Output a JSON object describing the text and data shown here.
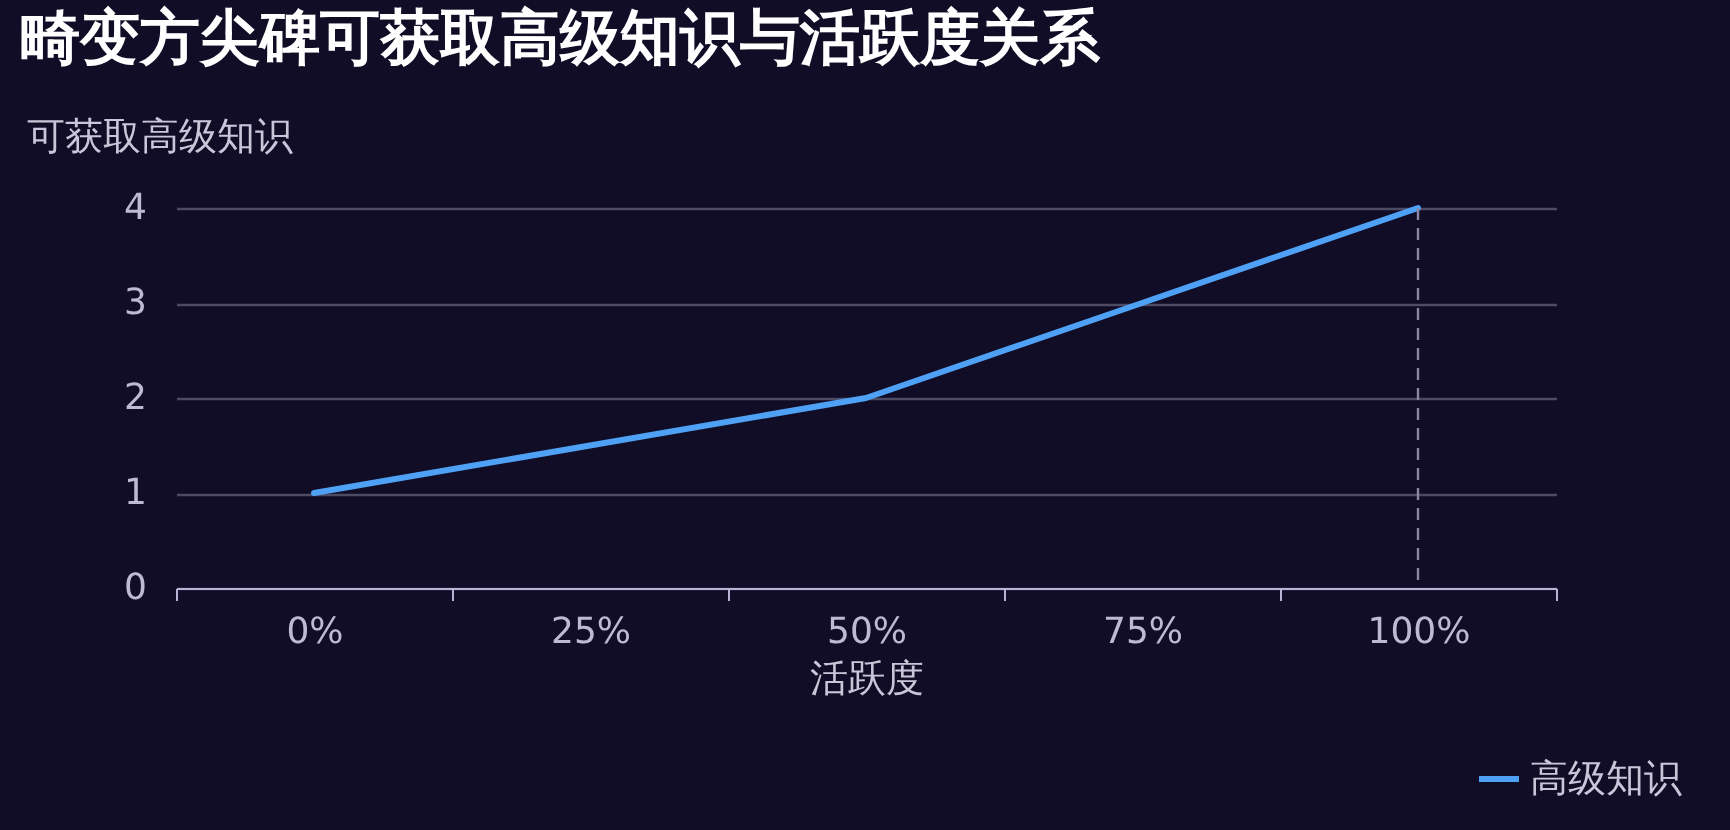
{
  "chart_data": {
    "type": "line",
    "title": "畸变方尖碑可获取高级知识与活跃度关系",
    "xlabel": "活跃度",
    "ylabel": "可获取高级知识",
    "categories": [
      "0%",
      "25%",
      "50%",
      "75%",
      "100%"
    ],
    "series": [
      {
        "name": "高级知识",
        "color": "#4ea1f5",
        "values": [
          1,
          1.5,
          2,
          3,
          4
        ]
      }
    ],
    "ylim": [
      0,
      4
    ],
    "yticks": [
      0,
      1,
      2,
      3,
      4
    ],
    "grid": "y",
    "legend": "bottom right",
    "marker": "none",
    "line_style": "solid",
    "ref_lines": [
      {
        "axis": "x",
        "value": "100%",
        "color": "#8a87a3",
        "line_style": "dashed"
      }
    ]
  }
}
